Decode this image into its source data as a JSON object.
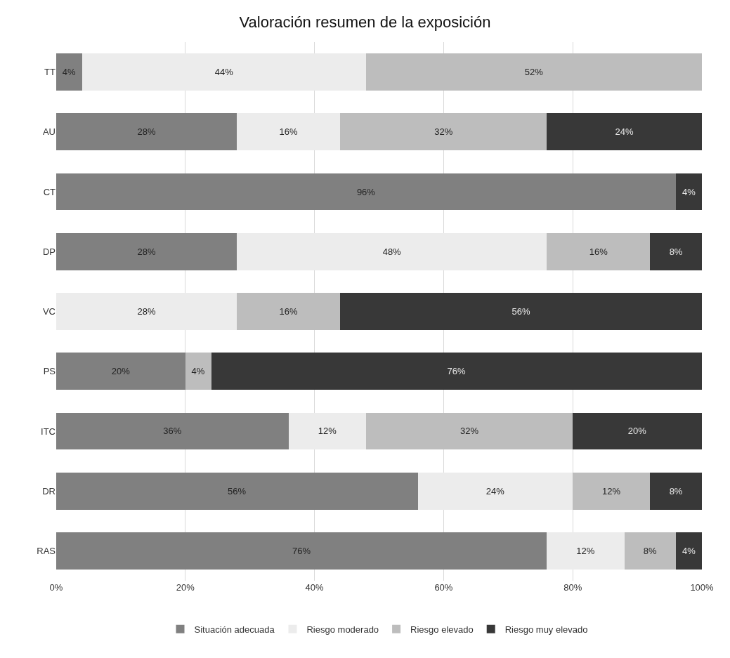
{
  "chart_data": {
    "type": "bar",
    "orientation": "horizontal",
    "stacked": true,
    "title": "Valoración resumen de la exposición",
    "categories": [
      "TT",
      "AU",
      "CT",
      "DP",
      "VC",
      "PS",
      "ITC",
      "DR",
      "RAS"
    ],
    "series": [
      {
        "name": "Situación adecuada",
        "color": "#808080",
        "values": [
          4,
          28,
          96,
          28,
          null,
          20,
          36,
          56,
          76
        ],
        "value_labels": [
          "4%",
          "28%",
          "96%",
          "28%",
          null,
          "20%",
          "36%",
          "56%",
          "76%"
        ]
      },
      {
        "name": "Riesgo moderado",
        "color": "#ececec",
        "values": [
          44,
          16,
          null,
          48,
          28,
          null,
          12,
          24,
          12
        ],
        "value_labels": [
          "44%",
          "16%",
          null,
          "48%",
          "28%",
          null,
          "12%",
          "24%",
          "12%"
        ]
      },
      {
        "name": "Riesgo elevado",
        "color": "#bdbdbd",
        "values": [
          52,
          32,
          null,
          16,
          16,
          4,
          32,
          12,
          8
        ],
        "value_labels": [
          "52%",
          "32%",
          null,
          "16%",
          "16%",
          "4%",
          "32%",
          "12%",
          "8%"
        ]
      },
      {
        "name": "Riesgo muy elevado",
        "color": "#383838",
        "values": [
          null,
          24,
          4,
          8,
          56,
          76,
          20,
          8,
          4
        ],
        "value_labels": [
          null,
          "24%",
          "4%",
          "8%",
          "56%",
          "76%",
          "20%",
          "8%",
          "4%"
        ]
      }
    ],
    "xlim": [
      0,
      100
    ],
    "xticks": [
      {
        "value": 0,
        "label": "0%"
      },
      {
        "value": 20,
        "label": "20%"
      },
      {
        "value": 40,
        "label": "40%"
      },
      {
        "value": 60,
        "label": "60%"
      },
      {
        "value": 80,
        "label": "80%"
      },
      {
        "value": 100,
        "label": "100%"
      }
    ],
    "grid": "x",
    "legend": "bottom"
  }
}
